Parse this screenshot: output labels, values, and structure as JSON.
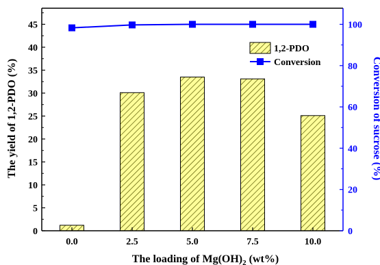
{
  "chart_data": {
    "type": "bar",
    "categories": [
      "0.0",
      "2.5",
      "5.0",
      "7.5",
      "10.0"
    ],
    "series": [
      {
        "name": "1,2-PDO",
        "type": "bar",
        "axis": "left",
        "values": [
          1.2,
          30.1,
          33.5,
          33.1,
          25.1
        ]
      },
      {
        "name": "Conversion",
        "type": "line",
        "axis": "right",
        "values": [
          98.3,
          99.7,
          100.0,
          100.0,
          100.0
        ]
      }
    ],
    "xlabel": "The loading of Mg(OH)",
    "xlabel_subscript": "2",
    "xlabel_suffix": " (wt%)",
    "ylabel": "The yield of 1,2-PDO (%)",
    "ylabel_right": "Conversion of sucrose (%)",
    "ylim": [
      0,
      48.5
    ],
    "ylim_right": [
      0,
      107.8
    ],
    "yticks": [
      "0",
      "5",
      "10",
      "15",
      "20",
      "25",
      "30",
      "35",
      "40",
      "45"
    ],
    "yticks_right": [
      "0",
      "20",
      "40",
      "60",
      "80",
      "100"
    ],
    "legend_position": "right-upper",
    "colors": {
      "bar_fill": "#ffff99",
      "bar_hatch": "#444400",
      "line": "#0000ff",
      "right_axis": "#0000ff",
      "left_axis": "#000000"
    }
  }
}
